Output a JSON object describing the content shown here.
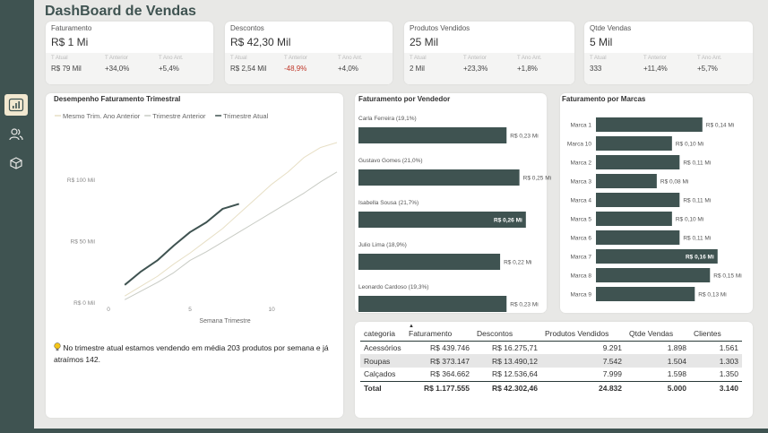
{
  "title": "DashBoard de Vendas",
  "kpis": [
    {
      "label": "Faturamento",
      "value": "R$ 1 Mi",
      "sub_labels": [
        "T Atual",
        "T Anterior",
        "T Ano Ant."
      ],
      "sub_values": [
        "R$ 79 Mil",
        "+34,0%",
        "+5,4%"
      ],
      "sub_colors": [
        "#444444",
        "#444444",
        "#444444"
      ]
    },
    {
      "label": "Descontos",
      "value": "R$ 42,30 Mil",
      "sub_labels": [
        "T Atual",
        "T Anterior",
        "T Ano Ant."
      ],
      "sub_values": [
        "R$ 2,54 Mil",
        "-48,9%",
        "+4,0%"
      ],
      "sub_colors": [
        "#444444",
        "#c0392b",
        "#444444"
      ]
    },
    {
      "label": "Produtos Vendidos",
      "value": "25 Mil",
      "sub_labels": [
        "T Atual",
        "T Anterior",
        "T Ano Ant."
      ],
      "sub_values": [
        "2 Mil",
        "+23,3%",
        "+1,8%"
      ],
      "sub_colors": [
        "#444444",
        "#444444",
        "#444444"
      ]
    },
    {
      "label": "Qtde Vendas",
      "value": "5 Mil",
      "sub_labels": [
        "T Atual",
        "T Anterior",
        "T Ano Ant."
      ],
      "sub_values": [
        "333",
        "+11,4%",
        "+5,7%"
      ],
      "sub_colors": [
        "#444444",
        "#444444",
        "#444444"
      ]
    }
  ],
  "line_panel": {
    "title": "Desempenho Faturamento Trimestral",
    "note": "No trimestre atual estamos vendendo em média 203 produtos por semana e já atraímos 142."
  },
  "vendor_panel": {
    "title": "Faturamento por Vendedor"
  },
  "brand_panel": {
    "title": "Faturamento por Marcas"
  },
  "chart_data": [
    {
      "type": "line",
      "title": "Desempenho Faturamento Trimestral",
      "xlabel": "Semana Trimestre",
      "ylabel": "",
      "xlim": [
        0,
        14
      ],
      "ylim": [
        0,
        130
      ],
      "x_ticks": [
        0,
        5,
        10
      ],
      "y_ticks": [
        0,
        50,
        100
      ],
      "y_tick_labels": [
        "R$ 0 Mil",
        "R$ 50 Mil",
        "R$ 100 Mil"
      ],
      "legend_position": "top",
      "series": [
        {
          "name": "Mesmo Trim. Ano Anterior",
          "color": "#e7dfc5",
          "width": 1,
          "x": [
            1,
            2,
            3,
            4,
            5,
            6,
            7,
            8,
            9,
            10,
            11,
            12,
            13,
            14
          ],
          "y": [
            5,
            13,
            21,
            31,
            40,
            50,
            60,
            72,
            84,
            96,
            106,
            118,
            126,
            130
          ]
        },
        {
          "name": "Trimestre Anterior",
          "color": "#c8cbc4",
          "width": 1,
          "x": [
            1,
            2,
            3,
            4,
            5,
            6,
            7,
            8,
            9,
            10,
            11,
            12,
            13,
            14
          ],
          "y": [
            2,
            9,
            16,
            24,
            34,
            41,
            49,
            57,
            65,
            73,
            81,
            89,
            98,
            106
          ]
        },
        {
          "name": "Trimestre Atual",
          "color": "#3f5351",
          "width": 2,
          "x": [
            1,
            2,
            3,
            4,
            5,
            6,
            7,
            8
          ],
          "y": [
            14,
            25,
            34,
            46,
            57,
            65,
            76,
            80
          ]
        }
      ]
    },
    {
      "type": "bar",
      "orientation": "horizontal",
      "title": "Faturamento por Vendedor",
      "categories": [
        "Carla Ferreira (19,1%)",
        "Gustavo Gomes (21,0%)",
        "Isabella Sousa (21,7%)",
        "Julio Lima (18,9%)",
        "Leonardo Cardoso (19,3%)"
      ],
      "values": [
        0.23,
        0.25,
        0.26,
        0.22,
        0.23
      ],
      "value_labels": [
        "R$ 0,23 Mi",
        "R$ 0,25 Mi",
        "R$ 0,26 Mi",
        "R$ 0,22 Mi",
        "R$ 0,23 Mi"
      ],
      "xlim": [
        0,
        0.27
      ],
      "bar_color": "#3f5351"
    },
    {
      "type": "bar",
      "orientation": "horizontal",
      "title": "Faturamento por Marcas",
      "categories": [
        "Marca 1",
        "Marca 10",
        "Marca 2",
        "Marca 3",
        "Marca 4",
        "Marca 5",
        "Marca 6",
        "Marca 7",
        "Marca 8",
        "Marca 9"
      ],
      "values": [
        0.14,
        0.1,
        0.11,
        0.08,
        0.11,
        0.1,
        0.11,
        0.16,
        0.15,
        0.13
      ],
      "value_labels": [
        "R$ 0,14 Mi",
        "R$ 0,10 Mi",
        "R$ 0,11 Mi",
        "R$ 0,08 Mi",
        "R$ 0,11 Mi",
        "R$ 0,10 Mi",
        "R$ 0,11 Mi",
        "R$ 0,16 Mi",
        "R$ 0,15 Mi",
        "R$ 0,13 Mi"
      ],
      "xlim": [
        0,
        0.165
      ],
      "bar_color": "#3f5351"
    }
  ],
  "table": {
    "headers": [
      "categoria",
      "Faturamento",
      "Descontos",
      "Produtos Vendidos",
      "Qtde Vendas",
      "Clientes"
    ],
    "rows": [
      [
        "Acessórios",
        "R$ 439.746",
        "R$ 16.275,71",
        "9.291",
        "1.898",
        "1.561"
      ],
      [
        "Roupas",
        "R$ 373.147",
        "R$ 13.490,12",
        "7.542",
        "1.504",
        "1.303"
      ],
      [
        "Calçados",
        "R$ 364.662",
        "R$ 12.536,64",
        "7.999",
        "1.598",
        "1.350"
      ]
    ],
    "total": [
      "Total",
      "R$ 1.177.555",
      "R$ 42.302,46",
      "24.832",
      "5.000",
      "3.140"
    ]
  },
  "sidebar": {
    "icons": [
      "bar-chart-icon",
      "users-icon",
      "box-icon"
    ]
  }
}
